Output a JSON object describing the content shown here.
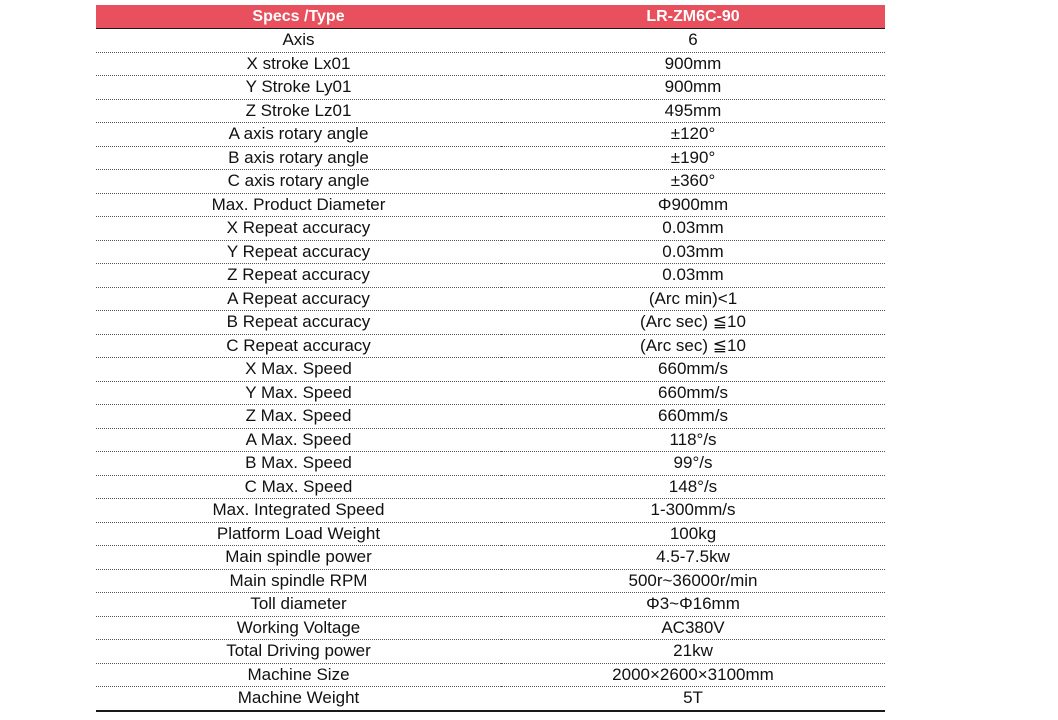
{
  "header": {
    "spec_label": "Specs /Type",
    "model": "LR-ZM6C-90"
  },
  "rows": [
    {
      "spec": "Axis",
      "value": "6"
    },
    {
      "spec": "X stroke Lx01",
      "value": "900mm"
    },
    {
      "spec": "Y Stroke Ly01",
      "value": "900mm"
    },
    {
      "spec": "Z Stroke Lz01",
      "value": "495mm"
    },
    {
      "spec": "A axis rotary angle",
      "value": "±120°"
    },
    {
      "spec": "B axis rotary angle",
      "value": "±190°"
    },
    {
      "spec": "C axis rotary angle",
      "value": "±360°"
    },
    {
      "spec": "Max. Product Diameter",
      "value": "Φ900mm"
    },
    {
      "spec": "X Repeat accuracy",
      "value": "0.03mm"
    },
    {
      "spec": "Y Repeat accuracy",
      "value": "0.03mm"
    },
    {
      "spec": "Z Repeat accuracy",
      "value": "0.03mm"
    },
    {
      "spec": "A Repeat accuracy",
      "value": "(Arc min)<1"
    },
    {
      "spec": "B Repeat accuracy",
      "value": "(Arc sec) ≦10"
    },
    {
      "spec": "C Repeat accuracy",
      "value": "(Arc sec) ≦10"
    },
    {
      "spec": "X Max. Speed",
      "value": "660mm/s"
    },
    {
      "spec": "Y Max. Speed",
      "value": "660mm/s"
    },
    {
      "spec": "Z Max. Speed",
      "value": "660mm/s"
    },
    {
      "spec": "A Max. Speed",
      "value": "118°/s"
    },
    {
      "spec": "B Max. Speed",
      "value": "99°/s"
    },
    {
      "spec": "C Max. Speed",
      "value": "148°/s"
    },
    {
      "spec": "Max. Integrated Speed",
      "value": "1-300mm/s"
    },
    {
      "spec": "Platform Load Weight",
      "value": "100kg"
    },
    {
      "spec": "Main spindle power",
      "value": "4.5-7.5kw"
    },
    {
      "spec": "Main spindle RPM",
      "value": "500r~36000r/min"
    },
    {
      "spec": "Toll diameter",
      "value": "Φ3~Φ16mm"
    },
    {
      "spec": "Working Voltage",
      "value": "AC380V"
    },
    {
      "spec": "Total Driving power",
      "value": "21kw"
    },
    {
      "spec": "Machine Size",
      "value": "2000×2600×3100mm"
    },
    {
      "spec": "Machine Weight",
      "value": "5T"
    }
  ],
  "colors": {
    "header_bg": "#e8505e",
    "header_text": "#ffffff"
  }
}
